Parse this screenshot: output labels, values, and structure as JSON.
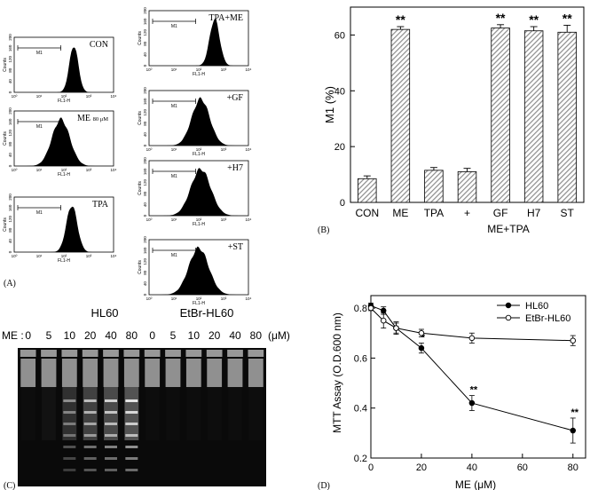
{
  "panel_letters": {
    "a": "(A)",
    "b": "(B)",
    "c": "(C)",
    "d": "(D)"
  },
  "colors": {
    "bar_fill": "#8c8c8c",
    "gel_bg": "#0a0a0a",
    "band": "#ffffff",
    "line": "#000000"
  },
  "flow": {
    "y_ticks": [
      "0",
      "40",
      "80",
      "120",
      "160",
      "200"
    ],
    "x_ticks": [
      "10⁰",
      "10¹",
      "10²",
      "10³",
      "10⁴"
    ],
    "y_label": "Counts",
    "x_label": "FL1-H",
    "gate_label": "M1",
    "panels": [
      {
        "label": "CON",
        "label_note": ""
      },
      {
        "label": "ME",
        "label_note": "80 μM"
      },
      {
        "label": "TPA",
        "label_note": ""
      },
      {
        "label": "TPA+ME",
        "label_note": ""
      },
      {
        "label": "+GF",
        "label_note": ""
      },
      {
        "label": "+H7",
        "label_note": ""
      },
      {
        "label": "+ST",
        "label_note": ""
      }
    ]
  },
  "gel": {
    "title_left": "HL60",
    "title_right": "EtBr-HL60",
    "row_label": "ME :",
    "unit": "(μM)",
    "lanes": [
      "0",
      "5",
      "10",
      "20",
      "40",
      "80",
      "0",
      "5",
      "10",
      "20",
      "40",
      "80"
    ]
  },
  "chart_data": [
    {
      "type": "bar",
      "ylabel": "M1  (%)",
      "xlabel": "",
      "group_label": "ME+TPA",
      "categories": [
        "CON",
        "ME",
        "TPA",
        "+",
        "GF",
        "H7",
        "ST"
      ],
      "values": [
        8.5,
        62,
        11.5,
        11,
        62.5,
        61.5,
        61
      ],
      "errors": [
        1,
        1,
        1,
        1.2,
        1.2,
        1.5,
        2.5
      ],
      "annotations": [
        "",
        "**",
        "",
        "",
        "**",
        "**",
        "**"
      ],
      "ylim": [
        0,
        70
      ],
      "yticks": [
        0,
        20,
        40,
        60
      ]
    },
    {
      "type": "line",
      "ylabel": "MTT Assay  (O.D.600 nm)",
      "xlabel": "ME  (μM)",
      "xlim": [
        0,
        85
      ],
      "ylim": [
        0.2,
        0.85
      ],
      "xticks": [
        0,
        20,
        40,
        60,
        80
      ],
      "yticks": [
        0.2,
        0.4,
        0.6,
        0.8
      ],
      "legend_position": "top-right",
      "series": [
        {
          "name": "HL60",
          "marker": "filled",
          "x": [
            0,
            5,
            10,
            20,
            40,
            80
          ],
          "y": [
            0.81,
            0.79,
            0.72,
            0.64,
            0.42,
            0.31
          ],
          "err": [
            0.01,
            0.015,
            0.025,
            0.02,
            0.03,
            0.05
          ],
          "annotations": [
            "",
            "",
            "",
            "*",
            "**",
            "**"
          ]
        },
        {
          "name": "EtBr-HL60",
          "marker": "open",
          "x": [
            0,
            5,
            10,
            20,
            40,
            80
          ],
          "y": [
            0.8,
            0.75,
            0.72,
            0.7,
            0.68,
            0.67
          ],
          "err": [
            0.01,
            0.03,
            0.02,
            0.015,
            0.02,
            0.02
          ],
          "annotations": [
            "",
            "",
            "",
            "",
            "",
            ""
          ]
        }
      ]
    }
  ]
}
